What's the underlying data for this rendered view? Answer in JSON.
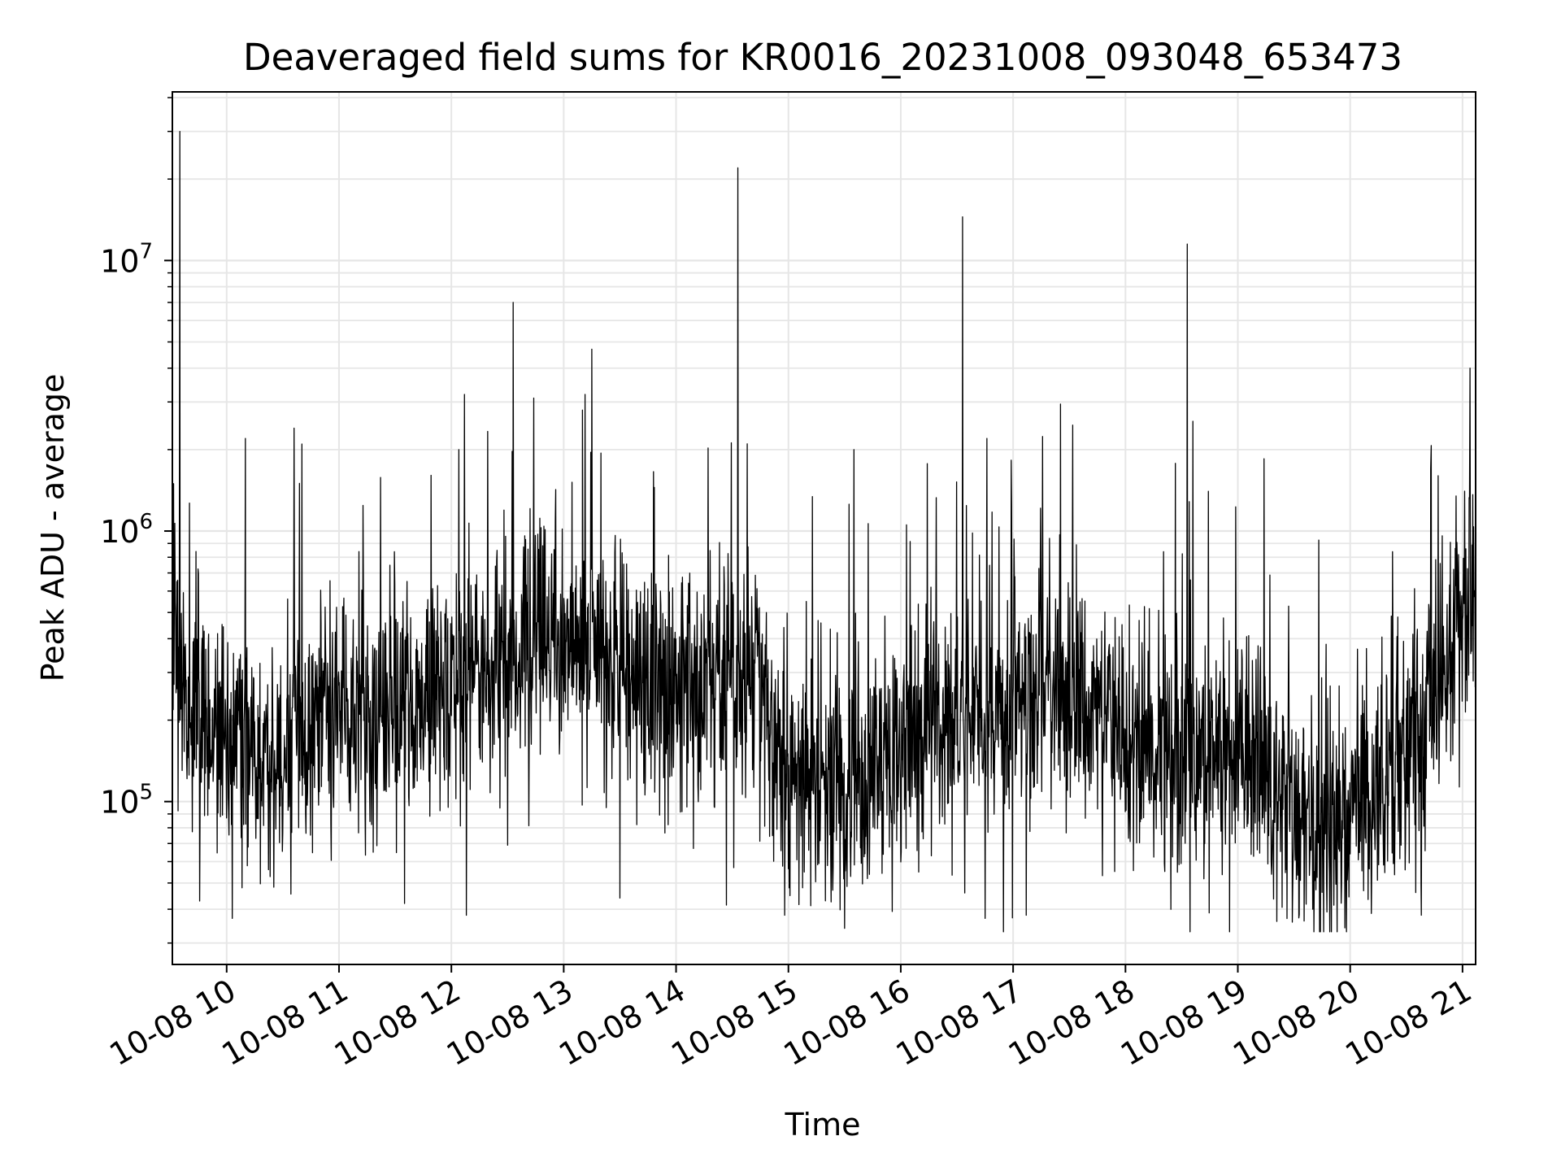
{
  "chart_data": {
    "type": "line",
    "title": "Deaveraged field sums for KR0016_20231008_093048_653473",
    "xlabel": "Time",
    "ylabel": "Peak ADU - average",
    "x_range": [
      "2023-10-08 09:31",
      "2023-10-08 21:07"
    ],
    "x_ticks": [
      "10-08 10",
      "10-08 11",
      "10-08 12",
      "10-08 13",
      "10-08 14",
      "10-08 15",
      "10-08 16",
      "10-08 17",
      "10-08 18",
      "10-08 19",
      "10-08 20",
      "10-08 21"
    ],
    "y_scale": "log",
    "ylim": [
      25000,
      42000000
    ],
    "y_ticks": [
      {
        "base": "10",
        "exp": "5",
        "value": 100000
      },
      {
        "base": "10",
        "exp": "6",
        "value": 1000000
      },
      {
        "base": "10",
        "exp": "7",
        "value": 10000000
      }
    ],
    "grid": true,
    "line_color": "#000000",
    "grid_color": "#e6e6e6",
    "baseline": [
      {
        "t": "09:31",
        "v": 450000
      },
      {
        "t": "09:45",
        "v": 180000
      },
      {
        "t": "10:15",
        "v": 150000
      },
      {
        "t": "10:45",
        "v": 200000
      },
      {
        "t": "11:15",
        "v": 220000
      },
      {
        "t": "11:45",
        "v": 230000
      },
      {
        "t": "12:15",
        "v": 290000
      },
      {
        "t": "12:45",
        "v": 420000
      },
      {
        "t": "13:15",
        "v": 360000
      },
      {
        "t": "13:45",
        "v": 300000
      },
      {
        "t": "14:15",
        "v": 290000
      },
      {
        "t": "14:45",
        "v": 280000
      },
      {
        "t": "15:00",
        "v": 130000
      },
      {
        "t": "15:30",
        "v": 105000
      },
      {
        "t": "15:50",
        "v": 150000
      },
      {
        "t": "16:20",
        "v": 200000
      },
      {
        "t": "16:50",
        "v": 210000
      },
      {
        "t": "17:10",
        "v": 270000
      },
      {
        "t": "17:40",
        "v": 270000
      },
      {
        "t": "18:00",
        "v": 160000
      },
      {
        "t": "18:30",
        "v": 140000
      },
      {
        "t": "18:50",
        "v": 170000
      },
      {
        "t": "19:15",
        "v": 130000
      },
      {
        "t": "19:45",
        "v": 85000
      },
      {
        "t": "20:15",
        "v": 100000
      },
      {
        "t": "20:45",
        "v": 250000
      },
      {
        "t": "21:07",
        "v": 600000
      }
    ],
    "spikes": [
      {
        "t": "09:35",
        "v": 30000000
      },
      {
        "t": "12:33",
        "v": 7000000
      },
      {
        "t": "13:15",
        "v": 4700000
      },
      {
        "t": "14:33",
        "v": 22000000
      },
      {
        "t": "16:33",
        "v": 14500000
      },
      {
        "t": "18:33",
        "v": 11500000
      },
      {
        "t": "21:04",
        "v": 4000000
      },
      {
        "t": "10:10",
        "v": 2200000
      },
      {
        "t": "10:36",
        "v": 2400000
      },
      {
        "t": "12:04",
        "v": 2000000
      },
      {
        "t": "12:44",
        "v": 3100000
      },
      {
        "t": "13:10",
        "v": 2800000
      },
      {
        "t": "14:38",
        "v": 2100000
      },
      {
        "t": "15:35",
        "v": 2000000
      },
      {
        "t": "16:46",
        "v": 2200000
      },
      {
        "t": "19:14",
        "v": 1850000
      },
      {
        "t": "20:43",
        "v": 1700000
      },
      {
        "t": "10:03",
        "v": 37000
      },
      {
        "t": "11:35",
        "v": 42000
      },
      {
        "t": "12:08",
        "v": 38000
      },
      {
        "t": "13:30",
        "v": 44000
      },
      {
        "t": "14:58",
        "v": 38000
      },
      {
        "t": "15:30",
        "v": 34000
      },
      {
        "t": "17:07",
        "v": 38000
      },
      {
        "t": "19:40",
        "v": 40000
      },
      {
        "t": "20:38",
        "v": 38000
      }
    ]
  }
}
